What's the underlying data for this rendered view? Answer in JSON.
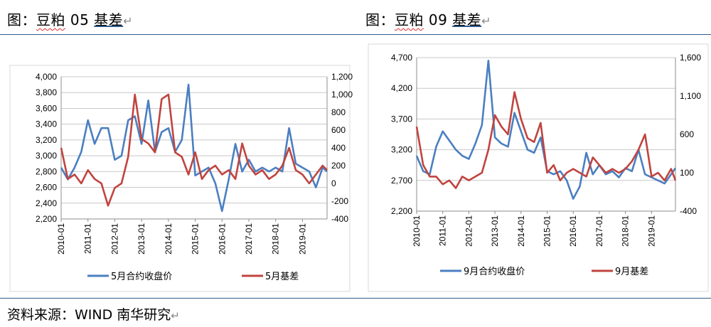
{
  "titles": {
    "left": {
      "prefix": "图：",
      "wavy": "豆粕",
      "middle": " 05 ",
      "underlined": "基差",
      "return_mark": "↵"
    },
    "right": {
      "prefix": "图：",
      "wavy": "豆粕",
      "middle": " 09 ",
      "underlined": "基差",
      "return_mark": "↵"
    }
  },
  "source": {
    "text": "资料来源：WIND  南华研究",
    "return_mark": "↵"
  },
  "colors": {
    "price": "#4a7fc1",
    "basis": "#c0443f",
    "grid": "#c8c8c8",
    "rule": "#2f5b8f"
  },
  "chart_data": [
    {
      "type": "line",
      "title": "",
      "x_ticks": [
        "2010-01",
        "2011-01",
        "2012-01",
        "2013-01",
        "2014-01",
        "2015-01",
        "2016-01",
        "2017-01",
        "2018-01",
        "2019-01"
      ],
      "x_range": [
        "2010-01",
        "2019-12"
      ],
      "y_left": {
        "range": [
          2200,
          4000
        ],
        "ticks": [
          "2,200",
          "2,400",
          "2,600",
          "2,800",
          "3,000",
          "3,200",
          "3,400",
          "3,600",
          "3,800",
          "4,000"
        ]
      },
      "y_right": {
        "range": [
          -400,
          1200
        ],
        "ticks": [
          "-400",
          "-200",
          "0",
          "200",
          "400",
          "600",
          "800",
          "1,000",
          "1,200"
        ]
      },
      "grid": true,
      "legend_position": "bottom",
      "series": [
        {
          "name": "5月合约收盘价",
          "axis": "left",
          "color": "#4a7fc1",
          "x": [
            "2010-01",
            "2010-04",
            "2010-07",
            "2010-10",
            "2011-01",
            "2011-04",
            "2011-07",
            "2011-10",
            "2012-01",
            "2012-04",
            "2012-07",
            "2012-10",
            "2013-01",
            "2013-04",
            "2013-07",
            "2013-10",
            "2014-01",
            "2014-04",
            "2014-07",
            "2014-10",
            "2015-01",
            "2015-04",
            "2015-07",
            "2015-10",
            "2016-01",
            "2016-04",
            "2016-07",
            "2016-10",
            "2017-01",
            "2017-04",
            "2017-07",
            "2017-10",
            "2018-01",
            "2018-04",
            "2018-07",
            "2018-10",
            "2019-01",
            "2019-04",
            "2019-07",
            "2019-10",
            "2019-12"
          ],
          "y": [
            2850,
            2700,
            2850,
            3050,
            3450,
            3150,
            3350,
            3350,
            2950,
            3000,
            3450,
            3500,
            3150,
            3700,
            3050,
            3300,
            3350,
            3050,
            3200,
            3900,
            2750,
            2800,
            2850,
            2650,
            2300,
            2700,
            3150,
            2800,
            2950,
            2800,
            2850,
            2800,
            2850,
            2800,
            3350,
            2900,
            2850,
            2800,
            2600,
            2850,
            2800
          ]
        },
        {
          "name": "5月基差",
          "axis": "right",
          "color": "#c0443f",
          "x": [
            "2010-01",
            "2010-04",
            "2010-07",
            "2010-10",
            "2011-01",
            "2011-04",
            "2011-07",
            "2011-10",
            "2012-01",
            "2012-04",
            "2012-07",
            "2012-10",
            "2013-01",
            "2013-04",
            "2013-07",
            "2013-10",
            "2014-01",
            "2014-04",
            "2014-07",
            "2014-10",
            "2015-01",
            "2015-04",
            "2015-07",
            "2015-10",
            "2016-01",
            "2016-04",
            "2016-07",
            "2016-10",
            "2017-01",
            "2017-04",
            "2017-07",
            "2017-10",
            "2018-01",
            "2018-04",
            "2018-07",
            "2018-10",
            "2019-01",
            "2019-04",
            "2019-07",
            "2019-10",
            "2019-12"
          ],
          "y": [
            400,
            50,
            100,
            0,
            150,
            50,
            0,
            -250,
            -50,
            0,
            300,
            1000,
            500,
            450,
            350,
            950,
            1000,
            350,
            300,
            100,
            350,
            50,
            150,
            200,
            100,
            150,
            50,
            450,
            200,
            100,
            150,
            50,
            100,
            200,
            400,
            150,
            100,
            0,
            100,
            200,
            150
          ]
        }
      ]
    },
    {
      "type": "line",
      "title": "",
      "x_ticks": [
        "2010-01",
        "2011-01",
        "2012-01",
        "2013-01",
        "2014-01",
        "2015-01",
        "2016-01",
        "2017-01",
        "2018-01",
        "2019-01"
      ],
      "x_range": [
        "2010-01",
        "2019-12"
      ],
      "y_left": {
        "range": [
          2200,
          4700
        ],
        "ticks": [
          "2,200",
          "2,700",
          "3,200",
          "3,700",
          "4,200",
          "4,700"
        ]
      },
      "y_right": {
        "range": [
          -400,
          1600
        ],
        "ticks": [
          "-400",
          "100",
          "600",
          "1,100",
          "1,600"
        ]
      },
      "grid": true,
      "legend_position": "bottom",
      "series": [
        {
          "name": "9月合约收盘价",
          "axis": "left",
          "color": "#4a7fc1",
          "x": [
            "2010-01",
            "2010-04",
            "2010-07",
            "2010-10",
            "2011-01",
            "2011-04",
            "2011-07",
            "2011-10",
            "2012-01",
            "2012-04",
            "2012-07",
            "2012-10",
            "2013-01",
            "2013-04",
            "2013-07",
            "2013-10",
            "2014-01",
            "2014-04",
            "2014-07",
            "2014-10",
            "2015-01",
            "2015-04",
            "2015-07",
            "2015-10",
            "2016-01",
            "2016-04",
            "2016-07",
            "2016-10",
            "2017-01",
            "2017-04",
            "2017-07",
            "2017-10",
            "2018-01",
            "2018-04",
            "2018-07",
            "2018-10",
            "2019-01",
            "2019-04",
            "2019-07",
            "2019-10",
            "2019-12"
          ],
          "y": [
            3100,
            2850,
            2800,
            3250,
            3500,
            3350,
            3200,
            3100,
            3050,
            3300,
            3600,
            4650,
            3400,
            3300,
            3250,
            3800,
            3500,
            3200,
            3150,
            3400,
            2850,
            2800,
            2850,
            2700,
            2400,
            2600,
            3150,
            2800,
            2950,
            2800,
            2850,
            2750,
            2900,
            2850,
            3200,
            2800,
            2750,
            2700,
            2650,
            2800,
            2900
          ]
        },
        {
          "name": "9月基差",
          "axis": "right",
          "color": "#c0443f",
          "x": [
            "2010-01",
            "2010-04",
            "2010-07",
            "2010-10",
            "2011-01",
            "2011-04",
            "2011-07",
            "2011-10",
            "2012-01",
            "2012-04",
            "2012-07",
            "2012-10",
            "2013-01",
            "2013-04",
            "2013-07",
            "2013-10",
            "2014-01",
            "2014-04",
            "2014-07",
            "2014-10",
            "2015-01",
            "2015-04",
            "2015-07",
            "2015-10",
            "2016-01",
            "2016-04",
            "2016-07",
            "2016-10",
            "2017-01",
            "2017-04",
            "2017-07",
            "2017-10",
            "2018-01",
            "2018-04",
            "2018-07",
            "2018-10",
            "2019-01",
            "2019-04",
            "2019-07",
            "2019-10",
            "2019-12"
          ],
          "y": [
            700,
            200,
            50,
            50,
            -50,
            0,
            -100,
            50,
            0,
            50,
            100,
            400,
            850,
            700,
            600,
            1150,
            800,
            550,
            500,
            750,
            100,
            200,
            0,
            100,
            150,
            100,
            50,
            300,
            200,
            100,
            150,
            100,
            150,
            250,
            400,
            600,
            50,
            100,
            0,
            150,
            0
          ]
        }
      ]
    }
  ]
}
